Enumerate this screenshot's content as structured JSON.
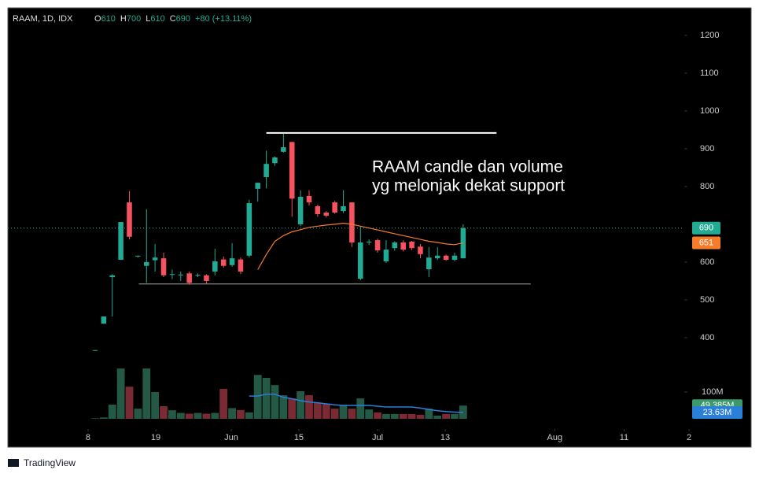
{
  "chart_data": {
    "type": "candlestick",
    "header": {
      "symbol": "RAAM, 1D, IDX",
      "ohlc": [
        {
          "key": "O",
          "value": 610
        },
        {
          "key": "H",
          "value": 700
        },
        {
          "key": "L",
          "value": 610
        },
        {
          "key": "C",
          "value": 690
        }
      ],
      "change": "+80 (+13.11%)"
    },
    "annotation": [
      "RAAM candle dan volume",
      "yg melonjak dekat support"
    ],
    "up_color": "#22ab94",
    "down_color": "#f7525f",
    "volume_up_color": "#245a45",
    "volume_down_color": "#7a2a33",
    "open": [
      365,
      437,
      560,
      606,
      758,
      615,
      590,
      605,
      610,
      567,
      565,
      570,
      565,
      565,
      575,
      607,
      592,
      607,
      617,
      794,
      825,
      862,
      892,
      918,
      700,
      775,
      748,
      731,
      758,
      735,
      758,
      556,
      653,
      658,
      602,
      637,
      652,
      654,
      641,
      581,
      610,
      617,
      606,
      610
    ],
    "high": [
      367,
      456,
      568,
      706,
      788,
      617,
      740,
      648,
      625,
      580,
      575,
      575,
      570,
      568,
      635,
      615,
      650,
      612,
      765,
      810,
      895,
      880,
      940,
      918,
      790,
      790,
      752,
      735,
      762,
      790,
      758,
      695,
      660,
      662,
      658,
      655,
      658,
      656,
      648,
      640,
      640,
      620,
      625,
      700
    ],
    "low": [
      365,
      437,
      456,
      606,
      660,
      612,
      545,
      575,
      560,
      555,
      550,
      540,
      560,
      543,
      565,
      585,
      588,
      568,
      612,
      760,
      795,
      855,
      890,
      720,
      695,
      750,
      720,
      718,
      728,
      730,
      640,
      552,
      645,
      625,
      598,
      630,
      628,
      632,
      610,
      560,
      605,
      604,
      602,
      610
    ],
    "close": [
      367,
      456,
      565,
      706,
      667,
      617,
      600,
      612,
      565,
      568,
      567,
      545,
      566,
      550,
      602,
      590,
      610,
      575,
      756,
      810,
      860,
      877,
      904,
      768,
      773,
      758,
      727,
      723,
      731,
      748,
      652,
      652,
      654,
      631,
      633,
      652,
      633,
      637,
      621,
      612,
      617,
      606,
      617,
      690
    ],
    "volume": [
      2,
      5,
      53,
      188,
      120,
      38,
      188,
      100,
      47,
      32,
      22,
      19,
      22,
      19,
      22,
      112,
      40,
      33,
      24,
      164,
      153,
      126,
      88,
      76,
      103,
      88,
      59,
      57,
      38,
      52,
      38,
      76,
      35,
      24,
      18,
      18,
      18,
      18,
      15,
      38,
      12,
      18,
      18,
      49.385
    ],
    "ma": {
      "color": "#f57c2a",
      "values": [
        null,
        null,
        null,
        null,
        null,
        null,
        null,
        null,
        null,
        null,
        null,
        null,
        null,
        null,
        null,
        null,
        null,
        null,
        null,
        580,
        620,
        655,
        670,
        680,
        686,
        692,
        695,
        698,
        700,
        703,
        700,
        695,
        690,
        685,
        680,
        675,
        670,
        665,
        660,
        655,
        652,
        648,
        646,
        651
      ]
    },
    "volume_ma": {
      "color": "#2a7fd8",
      "values": [
        null,
        null,
        null,
        null,
        null,
        null,
        null,
        null,
        null,
        null,
        null,
        null,
        null,
        null,
        null,
        null,
        null,
        null,
        85,
        85,
        92,
        92,
        80,
        75,
        68,
        63,
        60,
        56,
        52,
        50,
        50,
        50,
        50,
        47,
        44,
        44,
        44,
        44,
        40,
        35,
        30,
        27,
        25,
        23.63
      ]
    },
    "levels": [
      {
        "value": 942,
        "x": [
          20.0,
          46.9
        ]
      },
      {
        "value": 542,
        "x": [
          5.1,
          50.9
        ]
      }
    ],
    "price_labels": [
      {
        "value": 690,
        "color": "#22ab94"
      },
      {
        "value": 651,
        "color": "#f57c2a"
      }
    ],
    "volume_labels": [
      {
        "value": 49.385,
        "label": "49.385M",
        "color": "#3a9a6a"
      },
      {
        "value": 23.63,
        "label": "23.63M",
        "color": "#2a7fd8"
      }
    ],
    "xlim": [
      -10.2,
      76.65
    ],
    "xticks": [
      {
        "value": -0.83,
        "label": "8"
      },
      {
        "value": 7.08,
        "label": "19"
      },
      {
        "value": 15.9,
        "label": "Jun"
      },
      {
        "value": 23.8,
        "label": "15"
      },
      {
        "value": 33.0,
        "label": "Jul"
      },
      {
        "value": 40.9,
        "label": "13"
      },
      {
        "value": 53.7,
        "label": "Aug"
      },
      {
        "value": 61.8,
        "label": "11"
      },
      {
        "value": 69.4,
        "label": "2"
      }
    ],
    "ylim": [
      158,
      1273
    ],
    "yticks": [
      400,
      500,
      600,
      800,
      900,
      1000,
      1100,
      1200
    ],
    "volume_ylim": [
      0,
      100
    ],
    "volume_ticks": [
      {
        "value": 100,
        "label": "100M"
      }
    ],
    "brand": "TradingView"
  }
}
